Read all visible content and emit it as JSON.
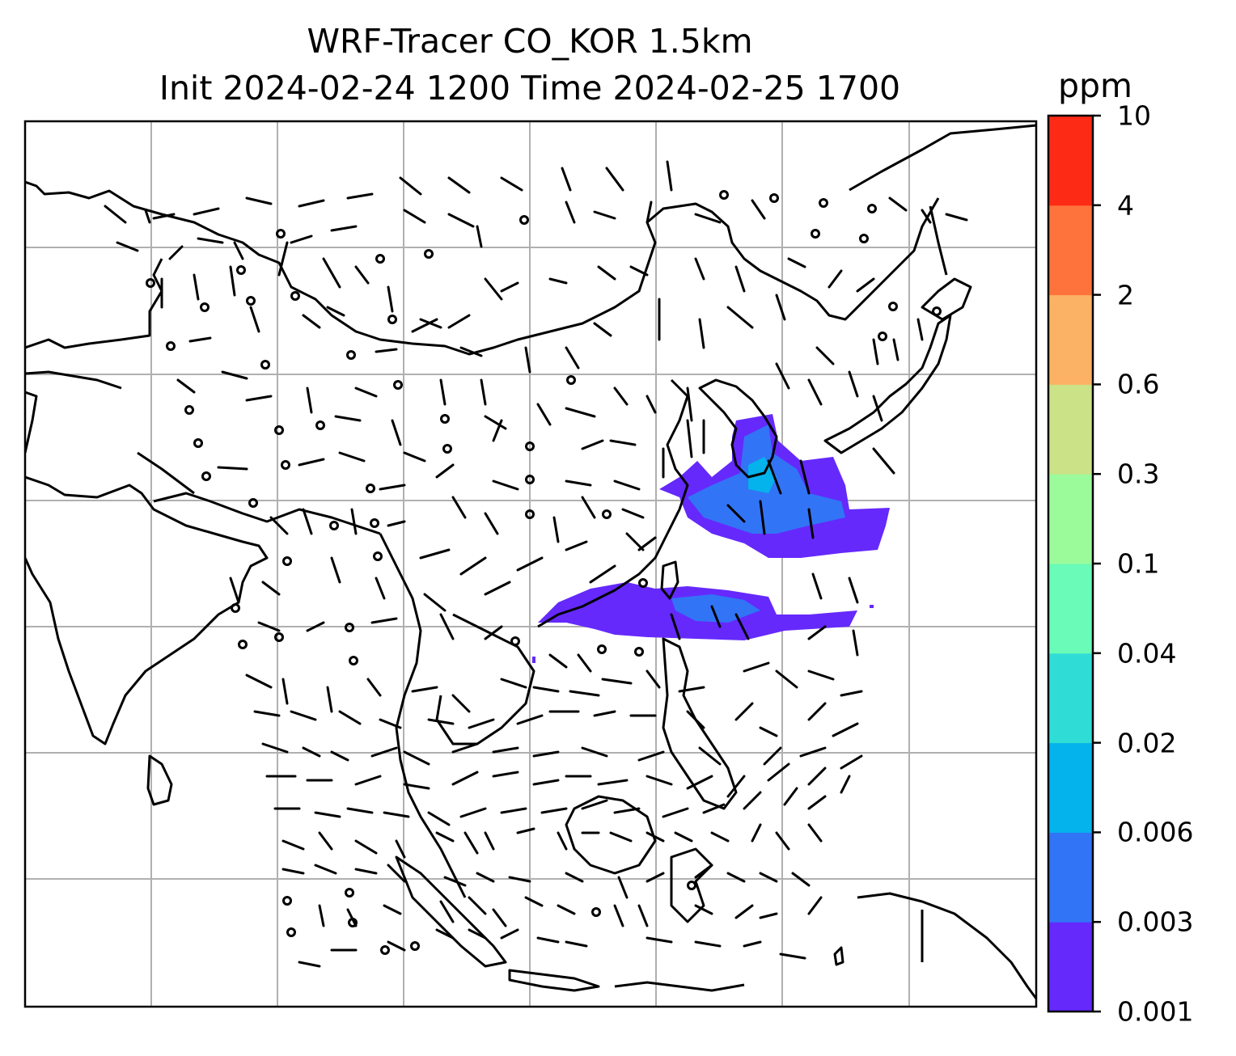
{
  "title": {
    "line1": "WRF-Tracer CO_KOR 1.5km",
    "line2": "Init 2024-02-24 1200 Time 2024-02-25 1700"
  },
  "colorbar": {
    "unit": "ppm",
    "levels": [
      "0.001",
      "0.003",
      "0.006",
      "0.02",
      "0.04",
      "0.1",
      "0.3",
      "0.6",
      "2",
      "4",
      "10"
    ],
    "colors": [
      "#6529fc",
      "#3274f6",
      "#04b2ec",
      "#30ddd6",
      "#69fbb7",
      "#9bfb9b",
      "#cbe287",
      "#fcb264",
      "#fe733c",
      "#fd2a15"
    ]
  },
  "map": {
    "coastline_color": "#000000",
    "gridline_color": "#b0b0b0",
    "barb_color": "#000000",
    "plume_color_main": "#6529fc",
    "plume_color_mid": "#3274f6",
    "plume_color_high": "#04b2ec"
  }
}
